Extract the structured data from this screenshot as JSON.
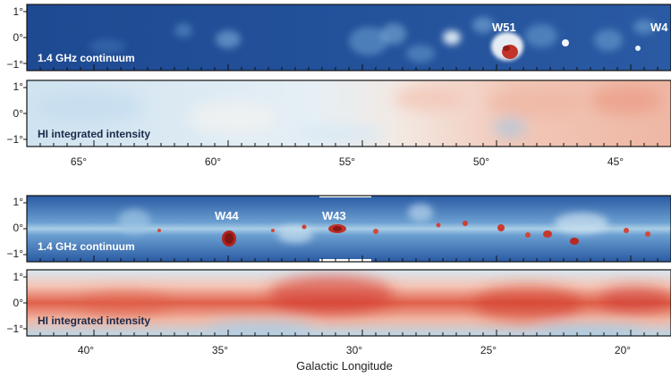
{
  "chart_data": {
    "type": "heatmap",
    "xlabel": "Galactic Longitude",
    "rows": [
      {
        "name": "upper",
        "xlim": [
          67.5,
          43.5
        ],
        "x_ticks": [
          65,
          60,
          55,
          50,
          45
        ],
        "x_tick_labels": [
          "65°",
          "60°",
          "55°",
          "50°",
          "45°"
        ],
        "panels": [
          {
            "label": "1.4 GHz continuum",
            "y_ticks": [
              "1°",
              "0°",
              "−1°"
            ],
            "y_values": [
              1,
              0,
              -1
            ],
            "colormap": "blue-dominant",
            "sources": [
              {
                "name": "W51",
                "l": 49.5,
                "b": 0.4
              },
              {
                "name": "W4",
                "l": 43.6,
                "b": 0.4
              }
            ]
          },
          {
            "label": "HI integrated intensity",
            "y_ticks": [
              "1°",
              "0°",
              "−1°"
            ],
            "y_values": [
              1,
              0,
              -1
            ],
            "colormap": "pale-blue-to-red"
          }
        ]
      },
      {
        "name": "lower",
        "xlim": [
          42.5,
          18.5
        ],
        "x_ticks": [
          40,
          35,
          30,
          25,
          20
        ],
        "x_tick_labels": [
          "40°",
          "35°",
          "30°",
          "25°",
          "20°"
        ],
        "panels": [
          {
            "label": "1.4 GHz continuum",
            "y_ticks": [
              "1°",
              "0°",
              "−1°"
            ],
            "y_values": [
              1,
              0,
              -1
            ],
            "colormap": "blue-with-red-sources",
            "sources": [
              {
                "name": "W44",
                "l": 34.7,
                "b": 0.4
              },
              {
                "name": "W43",
                "l": 30.8,
                "b": 0.4
              }
            ]
          },
          {
            "label": "HI integrated intensity",
            "y_ticks": [
              "1°",
              "0°",
              "−1°"
            ],
            "y_values": [
              1,
              0,
              -1
            ],
            "colormap": "red-band"
          }
        ]
      }
    ]
  },
  "colors": {
    "deep_blue": "#1a3f86",
    "mid_blue": "#3e74bb",
    "pale_blue": "#d3e6f2",
    "white": "#f6f4f1",
    "red": "#d7402e",
    "dark_red": "#9a1b18"
  }
}
